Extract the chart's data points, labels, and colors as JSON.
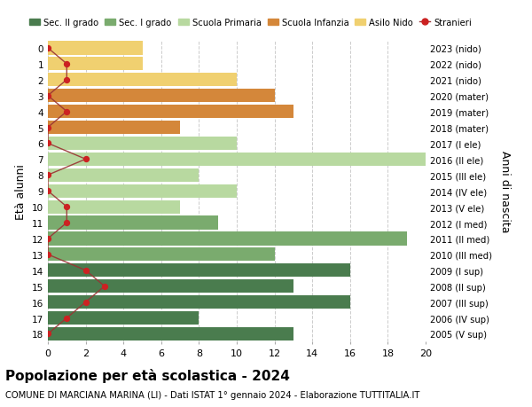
{
  "ages": [
    18,
    17,
    16,
    15,
    14,
    13,
    12,
    11,
    10,
    9,
    8,
    7,
    6,
    5,
    4,
    3,
    2,
    1,
    0
  ],
  "years": [
    "2005 (V sup)",
    "2006 (IV sup)",
    "2007 (III sup)",
    "2008 (II sup)",
    "2009 (I sup)",
    "2010 (III med)",
    "2011 (II med)",
    "2012 (I med)",
    "2013 (V ele)",
    "2014 (IV ele)",
    "2015 (III ele)",
    "2016 (II ele)",
    "2017 (I ele)",
    "2018 (mater)",
    "2019 (mater)",
    "2020 (mater)",
    "2021 (nido)",
    "2022 (nido)",
    "2023 (nido)"
  ],
  "bar_values": [
    13,
    8,
    16,
    13,
    16,
    12,
    19,
    9,
    7,
    10,
    8,
    20,
    10,
    7,
    13,
    12,
    10,
    5,
    5
  ],
  "bar_colors": [
    "#4a7c4e",
    "#4a7c4e",
    "#4a7c4e",
    "#4a7c4e",
    "#4a7c4e",
    "#7aab6e",
    "#7aab6e",
    "#7aab6e",
    "#b8d9a0",
    "#b8d9a0",
    "#b8d9a0",
    "#b8d9a0",
    "#b8d9a0",
    "#d4873a",
    "#d4873a",
    "#d4873a",
    "#f0d070",
    "#f0d070",
    "#f0d070"
  ],
  "stranieri_values": [
    0,
    1,
    2,
    3,
    2,
    0,
    0,
    1,
    1,
    0,
    0,
    2,
    0,
    0,
    1,
    0,
    1,
    1,
    0
  ],
  "legend_labels": [
    "Sec. II grado",
    "Sec. I grado",
    "Scuola Primaria",
    "Scuola Infanzia",
    "Asilo Nido",
    "Stranieri"
  ],
  "legend_colors": [
    "#4a7c4e",
    "#7aab6e",
    "#b8d9a0",
    "#d4873a",
    "#f0d070",
    "#cc2222"
  ],
  "title": "Popolazione per età scolastica - 2024",
  "subtitle": "COMUNE DI MARCIANA MARINA (LI) - Dati ISTAT 1° gennaio 2024 - Elaborazione TUTTITALIA.IT",
  "ylabel_left": "Età alunni",
  "ylabel_right": "Anni di nascita",
  "xlim": [
    0,
    20
  ],
  "xticks": [
    0,
    2,
    4,
    6,
    8,
    10,
    12,
    14,
    16,
    18,
    20
  ],
  "background_color": "#ffffff",
  "grid_color": "#cccccc",
  "stranieri_line_color": "#993333",
  "stranieri_marker_color": "#cc2222"
}
